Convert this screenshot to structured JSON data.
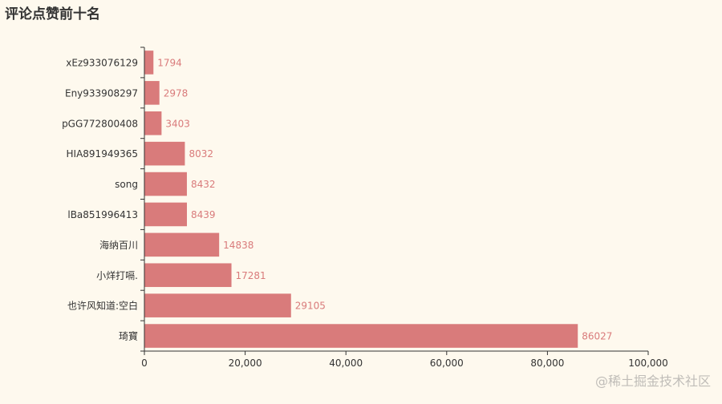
{
  "colors": {
    "background": "#fef9ee",
    "bar": "#d97b7b",
    "bar_label": "#d97b7b",
    "axis": "#333333",
    "tick_label": "#333333"
  },
  "watermark": "@稀土掘金技术社区",
  "chart_data": {
    "type": "bar",
    "orientation": "horizontal",
    "title": "评论点赞前十名",
    "categories": [
      "琦寶",
      "也许风知道:空白",
      "小烊打嗝.",
      "海纳百川",
      "lBa851996413",
      "song",
      "HIA891949365",
      "pGG772800408",
      "Eny933908297",
      "xEz933076129"
    ],
    "values": [
      86027,
      29105,
      17281,
      14838,
      8439,
      8432,
      8032,
      3403,
      2978,
      1794
    ],
    "value_labels": [
      "86027",
      "29105",
      "17281",
      "14838",
      "8439",
      "8432",
      "8032",
      "3403",
      "2978",
      "1794"
    ],
    "xlim": [
      0,
      100000
    ],
    "xticks": [
      0,
      20000,
      40000,
      60000,
      80000,
      100000
    ],
    "xtick_labels": [
      "0",
      "20,000",
      "40,000",
      "60,000",
      "80,000",
      "100,000"
    ],
    "grid": false,
    "data_labels": "right"
  }
}
